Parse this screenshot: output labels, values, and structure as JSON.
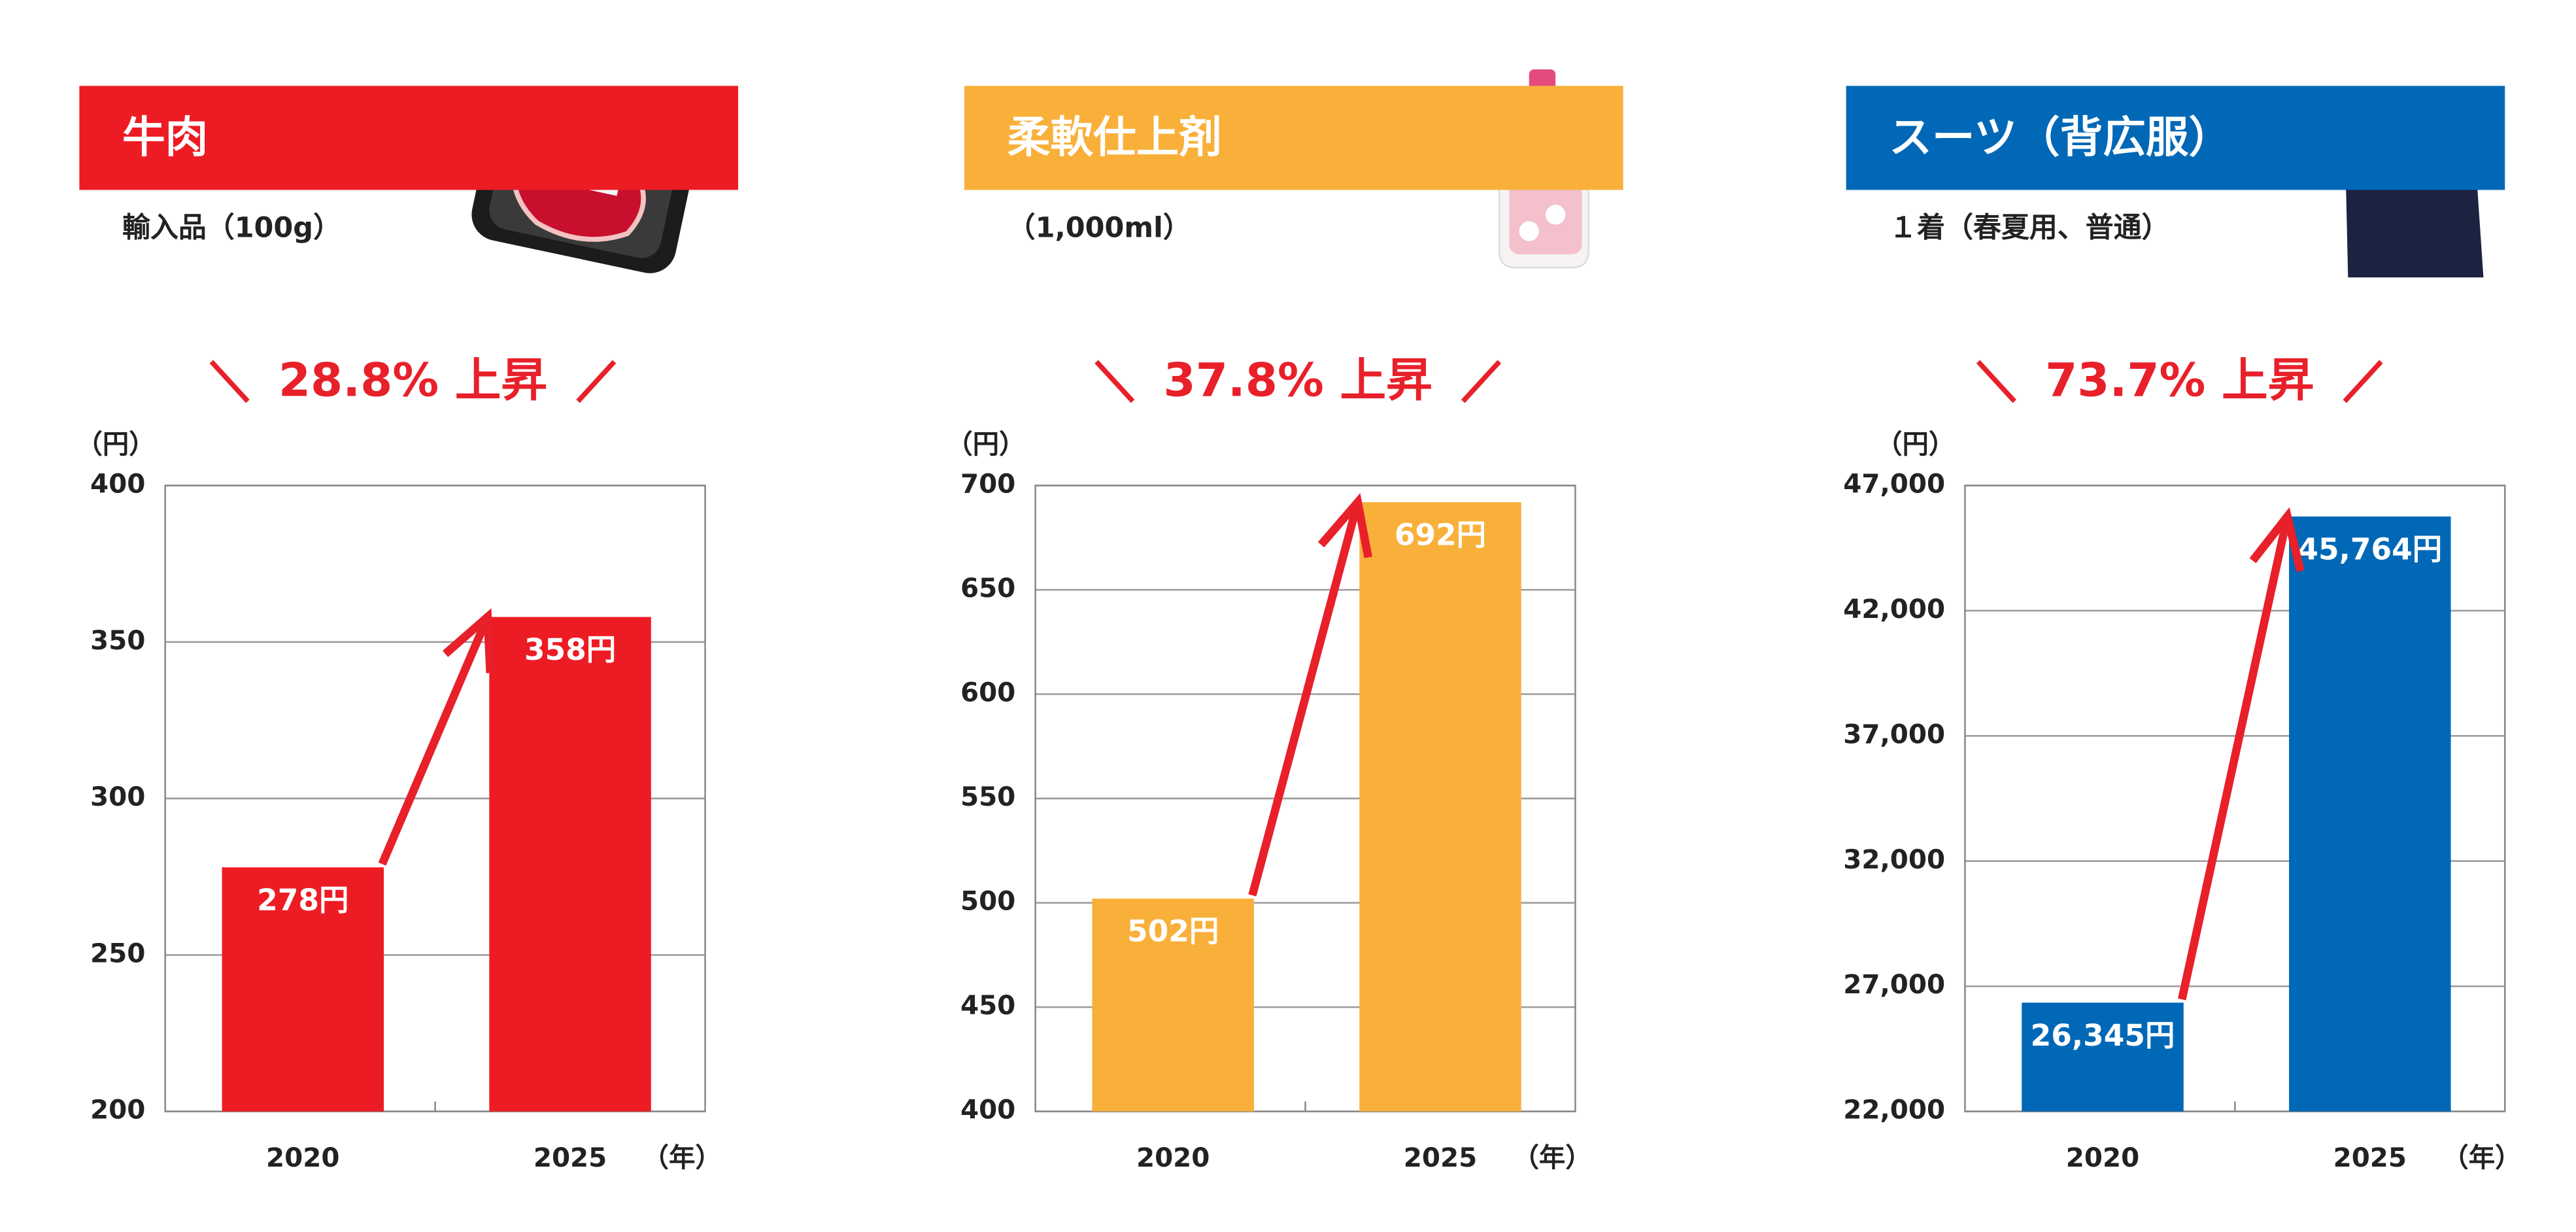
{
  "chart_data": [
    {
      "type": "bar",
      "title": "牛肉",
      "subtitle": "輸入品（100g）",
      "annotation": "28.8% 上昇",
      "y_unit": "（円）",
      "x_unit": "（年）",
      "categories": [
        "2020",
        "2025"
      ],
      "values": [
        278,
        358
      ],
      "value_labels": [
        "278円",
        "358円"
      ],
      "color": "#ed1c24",
      "ylim": [
        200,
        400
      ],
      "yticks": [
        200,
        250,
        300,
        350,
        400
      ],
      "grid": true
    },
    {
      "type": "bar",
      "title": "柔軟仕上剤",
      "subtitle": "（1,000ml）",
      "annotation": "37.8% 上昇",
      "y_unit": "（円）",
      "x_unit": "（年）",
      "categories": [
        "2020",
        "2025"
      ],
      "values": [
        502,
        692
      ],
      "value_labels": [
        "502円",
        "692円"
      ],
      "color": "#f9b03a",
      "ylim": [
        400,
        700
      ],
      "yticks": [
        400,
        450,
        500,
        550,
        600,
        650,
        700
      ],
      "grid": true
    },
    {
      "type": "bar",
      "title": "スーツ（背広服）",
      "subtitle": "１着（春夏用、普通）",
      "annotation": "73.7% 上昇",
      "y_unit": "（円）",
      "x_unit": "（年）",
      "categories": [
        "2020",
        "2025"
      ],
      "values": [
        26345,
        45764
      ],
      "value_labels": [
        "26,345円",
        "45,764円"
      ],
      "color": "#0068b7",
      "ylim": [
        22000,
        47000
      ],
      "yticks": [
        {
          "value": 22000,
          "label": "22,000"
        },
        {
          "value": 27000,
          "label": "27,000"
        },
        {
          "value": 32000,
          "label": "32,000"
        },
        {
          "value": 37000,
          "label": "37,000"
        },
        {
          "value": 42000,
          "label": "42,000"
        },
        {
          "value": 47000,
          "label": "47,000"
        }
      ],
      "grid": true
    }
  ]
}
